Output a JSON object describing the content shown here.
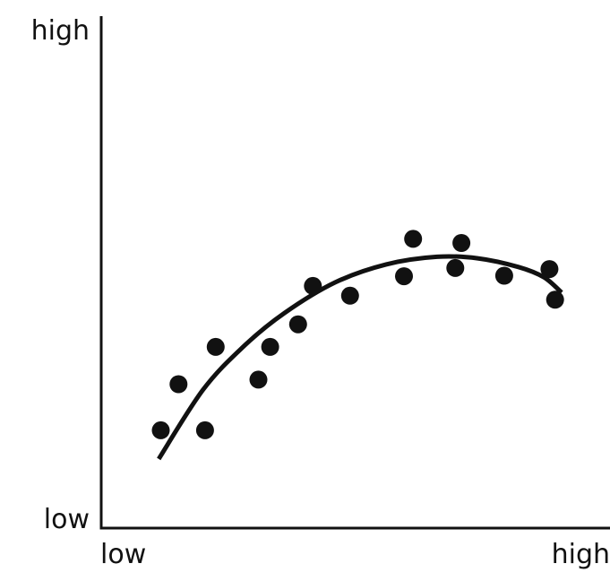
{
  "chart_data": {
    "type": "scatter",
    "title": "",
    "xlabel": "",
    "ylabel": "",
    "xlim": [
      0,
      100
    ],
    "ylim": [
      0,
      100
    ],
    "grid": false,
    "legend": "none",
    "x_tick_labels": {
      "min": "low",
      "max": "high"
    },
    "y_tick_labels": {
      "min": "low",
      "max": "high"
    },
    "points": [
      {
        "x": 11.7,
        "y": 19.1
      },
      {
        "x": 15.2,
        "y": 28.1
      },
      {
        "x": 20.4,
        "y": 19.1
      },
      {
        "x": 22.5,
        "y": 35.4
      },
      {
        "x": 30.9,
        "y": 29.0
      },
      {
        "x": 33.2,
        "y": 35.4
      },
      {
        "x": 38.7,
        "y": 39.8
      },
      {
        "x": 41.6,
        "y": 47.3
      },
      {
        "x": 48.9,
        "y": 45.4
      },
      {
        "x": 59.5,
        "y": 49.2
      },
      {
        "x": 61.3,
        "y": 56.5
      },
      {
        "x": 69.6,
        "y": 50.8
      },
      {
        "x": 70.8,
        "y": 55.7
      },
      {
        "x": 79.2,
        "y": 49.3
      },
      {
        "x": 88.1,
        "y": 50.6
      },
      {
        "x": 89.2,
        "y": 44.6
      }
    ],
    "trend_curve": [
      {
        "x": 11.3,
        "y": 13.5
      },
      {
        "x": 20.0,
        "y": 27.0
      },
      {
        "x": 28.0,
        "y": 35.5
      },
      {
        "x": 36.0,
        "y": 42.0
      },
      {
        "x": 46.0,
        "y": 48.0
      },
      {
        "x": 56.0,
        "y": 51.5
      },
      {
        "x": 66.0,
        "y": 53.0
      },
      {
        "x": 74.0,
        "y": 52.7
      },
      {
        "x": 82.0,
        "y": 51.0
      },
      {
        "x": 87.0,
        "y": 49.0
      },
      {
        "x": 90.5,
        "y": 46.0
      }
    ],
    "colors": {
      "points": "#111111",
      "curve": "#111111",
      "axes": "#111111",
      "background": "#ffffff"
    }
  }
}
